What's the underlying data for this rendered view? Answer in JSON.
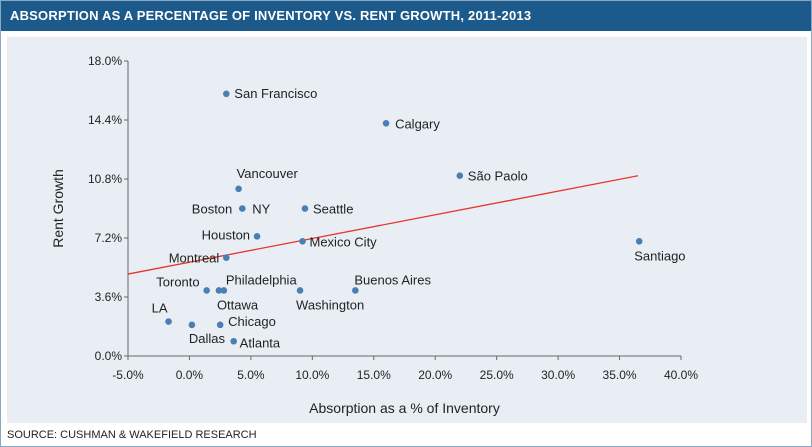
{
  "header": {
    "title": "ABSORPTION AS A PERCENTAGE OF INVENTORY VS. RENT GROWTH, 2011-2013"
  },
  "footer": {
    "source": "SOURCE: CUSHMAN & WAKEFIELD RESEARCH"
  },
  "colors": {
    "title_bar": "#1c5a8c",
    "panel": "#e9eef5",
    "point": "#4a7fb3",
    "trendline": "#e8342c"
  },
  "chart_data": {
    "type": "scatter",
    "title": "ABSORPTION AS A PERCENTAGE OF INVENTORY VS. RENT GROWTH, 2011-2013",
    "xlabel": "Absorption as a % of Inventory",
    "ylabel": "Rent Growth",
    "xlim": [
      -5,
      40
    ],
    "ylim": [
      0,
      18
    ],
    "x_ticks": [
      -5,
      0,
      5,
      10,
      15,
      20,
      25,
      30,
      35,
      40
    ],
    "x_tick_labels": [
      "-5.0%",
      "0.0%",
      "5.0%",
      "10.0%",
      "15.0%",
      "20.0%",
      "25.0%",
      "30.0%",
      "35.0%",
      "40.0%"
    ],
    "y_ticks": [
      0,
      3.6,
      7.2,
      10.8,
      14.4,
      18
    ],
    "y_tick_labels": [
      "0.0%",
      "3.6%",
      "7.2%",
      "10.8%",
      "14.4%",
      "18.0%"
    ],
    "grid": false,
    "legend": "none",
    "trendline": {
      "x": [
        -5,
        36.5
      ],
      "y": [
        5.0,
        11.0
      ]
    },
    "points": [
      {
        "label": "San Francisco",
        "x": 3.0,
        "y": 16.0
      },
      {
        "label": "Calgary",
        "x": 16.0,
        "y": 14.2
      },
      {
        "label": "São Paolo",
        "x": 22.0,
        "y": 11.0
      },
      {
        "label": "Vancouver",
        "x": 4.0,
        "y": 10.2
      },
      {
        "label": "Boston",
        "x": 4.3,
        "y": 9.0
      },
      {
        "label": "NY",
        "x": 4.3,
        "y": 9.0
      },
      {
        "label": "Seattle",
        "x": 9.4,
        "y": 9.0
      },
      {
        "label": "Houston",
        "x": 5.5,
        "y": 7.3
      },
      {
        "label": "Mexico City",
        "x": 9.2,
        "y": 7.0
      },
      {
        "label": "Santiago",
        "x": 36.6,
        "y": 7.0
      },
      {
        "label": "Montreal",
        "x": 3.0,
        "y": 6.0
      },
      {
        "label": "Toronto",
        "x": 1.4,
        "y": 4.0
      },
      {
        "label": "Philadelphia",
        "x": 2.8,
        "y": 4.0
      },
      {
        "label": "Ottawa",
        "x": 2.4,
        "y": 4.0
      },
      {
        "label": "Washington",
        "x": 9.0,
        "y": 4.0
      },
      {
        "label": "Buenos Aires",
        "x": 13.5,
        "y": 4.0
      },
      {
        "label": "LA",
        "x": -1.7,
        "y": 2.1
      },
      {
        "label": "Dallas",
        "x": 0.2,
        "y": 1.9
      },
      {
        "label": "Chicago",
        "x": 2.5,
        "y": 1.9
      },
      {
        "label": "Atlanta",
        "x": 3.6,
        "y": 0.9
      }
    ]
  }
}
